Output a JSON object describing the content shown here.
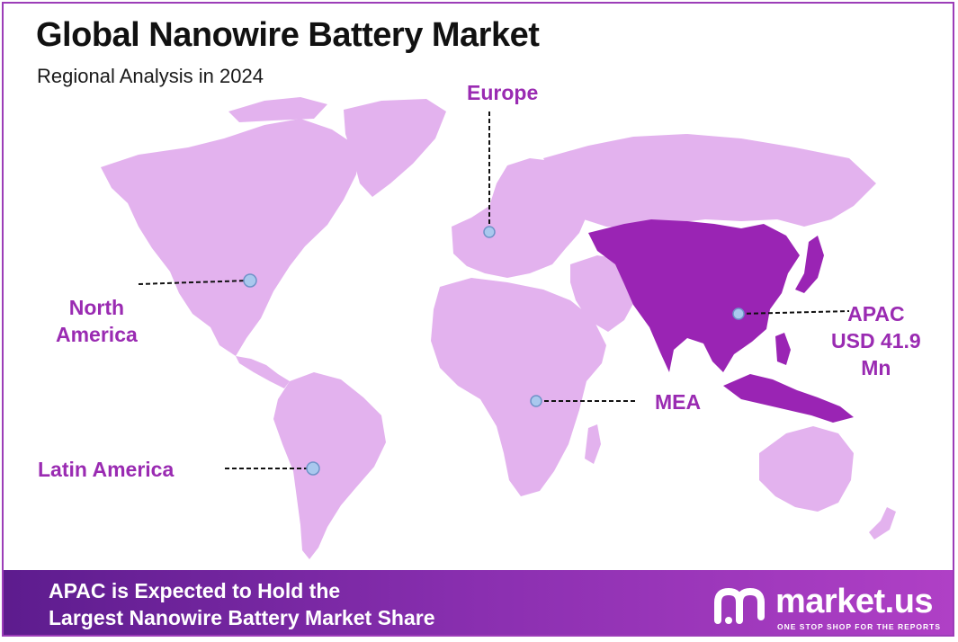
{
  "header": {
    "title": "Global Nanowire Battery Market",
    "subtitle": "Regional Analysis in 2024"
  },
  "regions": {
    "europe": "Europe",
    "north_america": "North\nAmerica",
    "apac": "APAC\nUSD 41.9\nMn",
    "mea": "MEA",
    "latin_america": "Latin America"
  },
  "highlighted_region": "APAC",
  "footer": {
    "line1": "APAC is Expected to Hold the",
    "line2": "Largest Nanowire Battery Market Share"
  },
  "brand": {
    "name": "market.us",
    "tagline": "ONE STOP SHOP FOR THE REPORTS"
  },
  "colors": {
    "land": "#e3b2ee",
    "highlight": "#9a24b4",
    "label": "#9a2bb2",
    "footer_start": "#5d1c8e",
    "footer_end": "#b040c6",
    "border": "#9c3db8"
  }
}
